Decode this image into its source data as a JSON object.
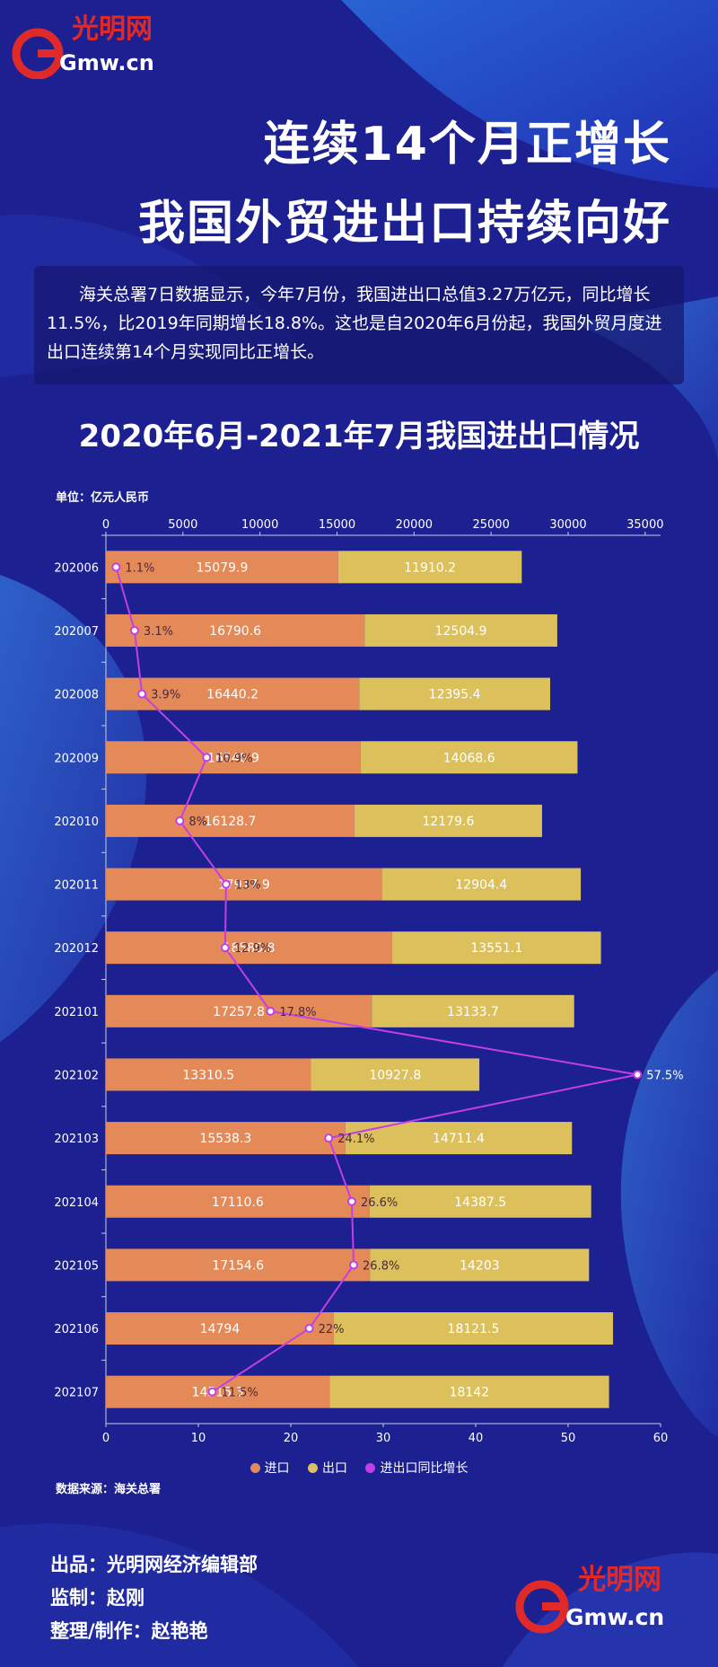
{
  "header": {
    "logo_text": "光明网",
    "logo_sub": "Gmw.cn",
    "title_line1": "连续14个月正增长",
    "title_line2": "我国外贸进出口持续向好"
  },
  "intro": "海关总署7日数据显示，今年7月份，我国进出口总值3.27万亿元，同比增长11.5%，比2019年同期增长18.8%。这也是自2020年6月份起，我国外贸月度进出口连续第14个月实现同比正增长。",
  "unit_label": "单位：亿元人民币",
  "source_label": "数据来源：海关总署",
  "credits": [
    "出品：光明网经济编辑部",
    "监制：赵刚",
    "整理/制作：赵艳艳"
  ],
  "colors": {
    "import": "#e48a58",
    "export": "#dcc05c",
    "growth": "#c43ee8",
    "background": "#1c2090"
  },
  "chart_data": {
    "type": "bar",
    "orientation": "horizontal",
    "stacked": true,
    "title": "2020年6月-2021年7月我国进出口情况",
    "categories": [
      "202006",
      "202007",
      "202008",
      "202009",
      "202010",
      "202011",
      "202012",
      "202101",
      "202102",
      "202103",
      "202104",
      "202105",
      "202106",
      "202107"
    ],
    "series": [
      {
        "name": "进口",
        "values": [
          15079.9,
          16790.6,
          16440.2,
          16540.9,
          16128.7,
          17917.9,
          18580.8,
          17257.8,
          13310.5,
          15538.3,
          17110.6,
          17154.6,
          14794,
          14515.3
        ]
      },
      {
        "name": "出口",
        "values": [
          11910.2,
          12504.9,
          12395.4,
          14068.6,
          12179.6,
          12904.4,
          13551.1,
          13133.7,
          10927.8,
          14711.4,
          14387.5,
          14203,
          18121.5,
          18142
        ]
      }
    ],
    "line_series": {
      "name": "进出口同比增长",
      "values": [
        1.1,
        3.1,
        3.9,
        10.9,
        8,
        13,
        12.9,
        17.8,
        57.5,
        24.1,
        26.6,
        26.8,
        22,
        11.5
      ],
      "labels": [
        "1.1%",
        "3.1%",
        "3.9%",
        "10.9%",
        "8%",
        "13%",
        "12.9%",
        "17.8%",
        "57.5%",
        "24.1%",
        "26.6%",
        "26.8%",
        "22%",
        "11.5%"
      ]
    },
    "top_axis": {
      "range": [
        0,
        36000
      ],
      "ticks": [
        "0",
        "5000",
        "10000",
        "15000",
        "20000",
        "25000",
        "30000",
        "35000"
      ]
    },
    "bottom_axis": {
      "range": [
        0,
        60
      ],
      "ticks": [
        "0",
        "10",
        "20",
        "30",
        "40",
        "50",
        "60"
      ]
    },
    "legend_position": "bottom"
  }
}
